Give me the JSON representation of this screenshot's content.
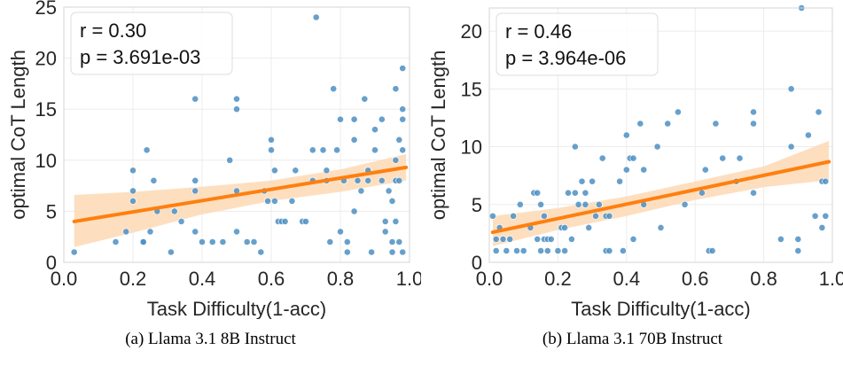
{
  "chart_data": [
    {
      "type": "scatter",
      "caption": "(a) Llama 3.1 8B Instruct",
      "xlabel": "Task Difficulty(1-acc)",
      "ylabel": "optimal CoT Length",
      "xlim": [
        0.0,
        1.0
      ],
      "ylim": [
        0,
        25
      ],
      "xticks": [
        0.0,
        0.2,
        0.4,
        0.6,
        0.8,
        1.0
      ],
      "xtick_labels": [
        "0.0",
        "0.2",
        "0.4",
        "0.6",
        "0.8",
        "1.0"
      ],
      "yticks": [
        0,
        5,
        10,
        15,
        20,
        25
      ],
      "ytick_labels": [
        "0",
        "5",
        "10",
        "15",
        "20",
        "25"
      ],
      "grid": true,
      "stats": {
        "r": "r = 0.30",
        "p": "p = 3.691e-03"
      },
      "stats_placement": "top-left",
      "point_color": "#4c8fc3",
      "fit_color": "#ff7f0e",
      "band_color": "#fdd9b5",
      "fit": {
        "x": [
          0.03,
          0.99
        ],
        "y": [
          4.0,
          9.3
        ]
      },
      "band": {
        "x": [
          0.03,
          0.2,
          0.4,
          0.6,
          0.8,
          0.99
        ],
        "upper": [
          6.6,
          6.9,
          7.4,
          8.0,
          9.1,
          10.6
        ],
        "lower": [
          1.5,
          2.9,
          4.7,
          6.0,
          6.9,
          8.0
        ]
      },
      "points": [
        [
          0.03,
          1
        ],
        [
          0.15,
          2
        ],
        [
          0.18,
          3
        ],
        [
          0.2,
          9
        ],
        [
          0.2,
          7
        ],
        [
          0.2,
          6
        ],
        [
          0.23,
          2
        ],
        [
          0.23,
          2
        ],
        [
          0.24,
          11
        ],
        [
          0.25,
          3
        ],
        [
          0.26,
          8
        ],
        [
          0.27,
          5
        ],
        [
          0.31,
          1
        ],
        [
          0.32,
          5
        ],
        [
          0.34,
          4
        ],
        [
          0.38,
          16
        ],
        [
          0.38,
          8
        ],
        [
          0.38,
          7
        ],
        [
          0.38,
          3
        ],
        [
          0.4,
          2
        ],
        [
          0.43,
          2
        ],
        [
          0.46,
          2
        ],
        [
          0.48,
          10
        ],
        [
          0.5,
          16
        ],
        [
          0.5,
          15
        ],
        [
          0.5,
          7
        ],
        [
          0.5,
          3
        ],
        [
          0.53,
          2
        ],
        [
          0.55,
          2
        ],
        [
          0.57,
          1
        ],
        [
          0.58,
          7
        ],
        [
          0.59,
          6
        ],
        [
          0.6,
          12
        ],
        [
          0.6,
          11
        ],
        [
          0.61,
          9
        ],
        [
          0.61,
          6
        ],
        [
          0.62,
          4
        ],
        [
          0.63,
          4
        ],
        [
          0.64,
          4
        ],
        [
          0.66,
          6
        ],
        [
          0.67,
          9
        ],
        [
          0.69,
          4
        ],
        [
          0.7,
          4
        ],
        [
          0.72,
          11
        ],
        [
          0.72,
          8
        ],
        [
          0.73,
          24
        ],
        [
          0.75,
          11
        ],
        [
          0.76,
          9
        ],
        [
          0.76,
          8
        ],
        [
          0.77,
          2
        ],
        [
          0.78,
          17
        ],
        [
          0.79,
          11
        ],
        [
          0.8,
          14
        ],
        [
          0.8,
          3
        ],
        [
          0.81,
          8
        ],
        [
          0.82,
          2
        ],
        [
          0.82,
          1
        ],
        [
          0.84,
          14
        ],
        [
          0.84,
          12
        ],
        [
          0.84,
          5
        ],
        [
          0.85,
          8
        ],
        [
          0.86,
          7
        ],
        [
          0.87,
          16
        ],
        [
          0.88,
          9
        ],
        [
          0.88,
          8
        ],
        [
          0.89,
          1
        ],
        [
          0.9,
          13
        ],
        [
          0.9,
          11
        ],
        [
          0.92,
          14
        ],
        [
          0.92,
          8
        ],
        [
          0.93,
          4
        ],
        [
          0.93,
          3
        ],
        [
          0.94,
          7
        ],
        [
          0.95,
          6
        ],
        [
          0.95,
          2
        ],
        [
          0.95,
          1
        ],
        [
          0.96,
          17
        ],
        [
          0.96,
          10
        ],
        [
          0.96,
          8
        ],
        [
          0.96,
          4
        ],
        [
          0.97,
          12
        ],
        [
          0.97,
          8
        ],
        [
          0.97,
          2
        ],
        [
          0.98,
          19
        ],
        [
          0.98,
          15
        ],
        [
          0.98,
          14
        ],
        [
          0.98,
          11
        ],
        [
          0.98,
          1
        ]
      ]
    },
    {
      "type": "scatter",
      "caption": "(b) Llama 3.1 70B Instruct",
      "xlabel": "Task Difficulty(1-acc)",
      "ylabel": "optimal CoT Length",
      "xlim": [
        0.0,
        1.0
      ],
      "ylim": [
        0,
        22
      ],
      "xticks": [
        0.0,
        0.2,
        0.4,
        0.6,
        0.8,
        1.0
      ],
      "xtick_labels": [
        "0.0",
        "0.2",
        "0.4",
        "0.6",
        "0.8",
        "1.0"
      ],
      "yticks": [
        0,
        5,
        10,
        15,
        20
      ],
      "ytick_labels": [
        "0",
        "5",
        "10",
        "15",
        "20"
      ],
      "grid": true,
      "stats": {
        "r": "r = 0.46",
        "p": "p = 3.964e-06"
      },
      "stats_placement": "top-left",
      "point_color": "#4c8fc3",
      "fit_color": "#ff7f0e",
      "band_color": "#fdd9b5",
      "fit": {
        "x": [
          0.01,
          0.99
        ],
        "y": [
          2.6,
          8.7
        ]
      },
      "band": {
        "x": [
          0.01,
          0.2,
          0.4,
          0.6,
          0.8,
          0.99
        ],
        "upper": [
          4.0,
          4.7,
          5.7,
          7.0,
          8.3,
          10.5
        ],
        "lower": [
          1.4,
          2.8,
          4.0,
          5.4,
          6.5,
          7.1
        ]
      },
      "points": [
        [
          0.01,
          4
        ],
        [
          0.02,
          2
        ],
        [
          0.02,
          1
        ],
        [
          0.03,
          3
        ],
        [
          0.04,
          2
        ],
        [
          0.05,
          1
        ],
        [
          0.06,
          2
        ],
        [
          0.07,
          4
        ],
        [
          0.08,
          1
        ],
        [
          0.09,
          5
        ],
        [
          0.1,
          1
        ],
        [
          0.12,
          3
        ],
        [
          0.13,
          6
        ],
        [
          0.14,
          6
        ],
        [
          0.14,
          2
        ],
        [
          0.15,
          5
        ],
        [
          0.15,
          1
        ],
        [
          0.16,
          4
        ],
        [
          0.16,
          2
        ],
        [
          0.17,
          2
        ],
        [
          0.17,
          1
        ],
        [
          0.18,
          2
        ],
        [
          0.2,
          1
        ],
        [
          0.21,
          3
        ],
        [
          0.22,
          3
        ],
        [
          0.22,
          1
        ],
        [
          0.23,
          6
        ],
        [
          0.24,
          2
        ],
        [
          0.25,
          10
        ],
        [
          0.25,
          6
        ],
        [
          0.26,
          5
        ],
        [
          0.27,
          7
        ],
        [
          0.28,
          6
        ],
        [
          0.28,
          5
        ],
        [
          0.29,
          3
        ],
        [
          0.3,
          7
        ],
        [
          0.31,
          4
        ],
        [
          0.32,
          5
        ],
        [
          0.33,
          9
        ],
        [
          0.34,
          4
        ],
        [
          0.34,
          1
        ],
        [
          0.35,
          1
        ],
        [
          0.35,
          4
        ],
        [
          0.38,
          7
        ],
        [
          0.39,
          1
        ],
        [
          0.4,
          11
        ],
        [
          0.4,
          8
        ],
        [
          0.41,
          9
        ],
        [
          0.42,
          9
        ],
        [
          0.42,
          2
        ],
        [
          0.44,
          12
        ],
        [
          0.45,
          8
        ],
        [
          0.45,
          5
        ],
        [
          0.49,
          10
        ],
        [
          0.5,
          3
        ],
        [
          0.52,
          12
        ],
        [
          0.55,
          13
        ],
        [
          0.57,
          5
        ],
        [
          0.62,
          6
        ],
        [
          0.63,
          8
        ],
        [
          0.64,
          1
        ],
        [
          0.65,
          1
        ],
        [
          0.66,
          12
        ],
        [
          0.68,
          9
        ],
        [
          0.72,
          7
        ],
        [
          0.73,
          9
        ],
        [
          0.77,
          13
        ],
        [
          0.77,
          12
        ],
        [
          0.77,
          6
        ],
        [
          0.85,
          2
        ],
        [
          0.88,
          15
        ],
        [
          0.88,
          10
        ],
        [
          0.9,
          2
        ],
        [
          0.9,
          1
        ],
        [
          0.91,
          22
        ],
        [
          0.93,
          11
        ],
        [
          0.95,
          4
        ],
        [
          0.96,
          13
        ],
        [
          0.97,
          7
        ],
        [
          0.97,
          3
        ],
        [
          0.98,
          7
        ],
        [
          0.98,
          4
        ]
      ]
    }
  ]
}
